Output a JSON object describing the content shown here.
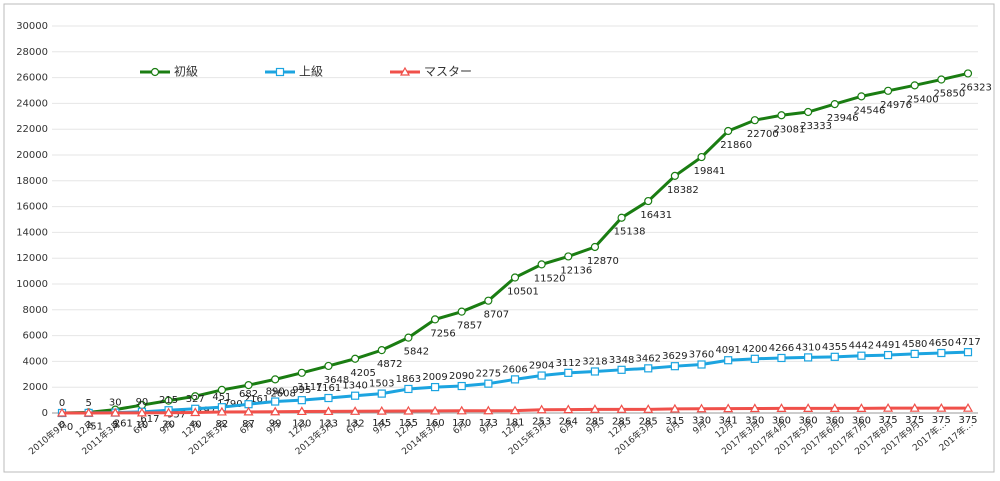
{
  "chart_data": {
    "type": "line",
    "categories": [
      "2010年9月",
      "12月",
      "2011年3月",
      "6月",
      "9月",
      "12月",
      "2012年3月",
      "6月",
      "9月",
      "12月",
      "2013年3月",
      "6月",
      "9月",
      "12月",
      "2014年3月",
      "6月",
      "9月",
      "12月",
      "2015年3月",
      "6月",
      "9月",
      "12月",
      "2016年3月",
      "6月",
      "9月",
      "12月",
      "2017年3月",
      "2017年4月",
      "2017年5月",
      "2017年6月",
      "2017年7月",
      "2017年8月",
      "2017年9月",
      "2017年…",
      "2017年…"
    ],
    "series": [
      {
        "name": "初級",
        "color": "#1a7d12",
        "marker": "circle",
        "values": [
          0,
          51,
          261,
          617,
          957,
          1297,
          1790,
          2161,
          2608,
          3117,
          3648,
          4205,
          4872,
          5842,
          7256,
          7857,
          8707,
          10501,
          11520,
          12136,
          12870,
          15138,
          16431,
          18382,
          19841,
          21860,
          22700,
          23081,
          23333,
          23946,
          24546,
          24976,
          25400,
          25850,
          26323
        ]
      },
      {
        "name": "上級",
        "color": "#1ca4e0",
        "marker": "square",
        "values": [
          0,
          5,
          30,
          90,
          215,
          327,
          451,
          682,
          890,
          995,
          1161,
          1340,
          1503,
          1863,
          2009,
          2090,
          2275,
          2606,
          2904,
          3112,
          3218,
          3348,
          3462,
          3629,
          3760,
          4091,
          4200,
          4266,
          4310,
          4355,
          4442,
          4491,
          4580,
          4650,
          4717
        ]
      },
      {
        "name": "マスター",
        "color": "#f0504a",
        "marker": "triangle",
        "values": [
          0,
          1,
          5,
          10,
          20,
          40,
          82,
          87,
          99,
          120,
          123,
          132,
          145,
          155,
          160,
          170,
          173,
          181,
          253,
          264,
          285,
          285,
          285,
          315,
          330,
          341,
          350,
          360,
          360,
          360,
          360,
          375,
          375,
          375,
          375
        ]
      }
    ],
    "ylim": [
      0,
      30000
    ],
    "yticks": [
      0,
      2000,
      4000,
      6000,
      8000,
      10000,
      12000,
      14000,
      16000,
      18000,
      20000,
      22000,
      24000,
      26000,
      28000,
      30000
    ],
    "grid": true,
    "legend": "top-left"
  }
}
